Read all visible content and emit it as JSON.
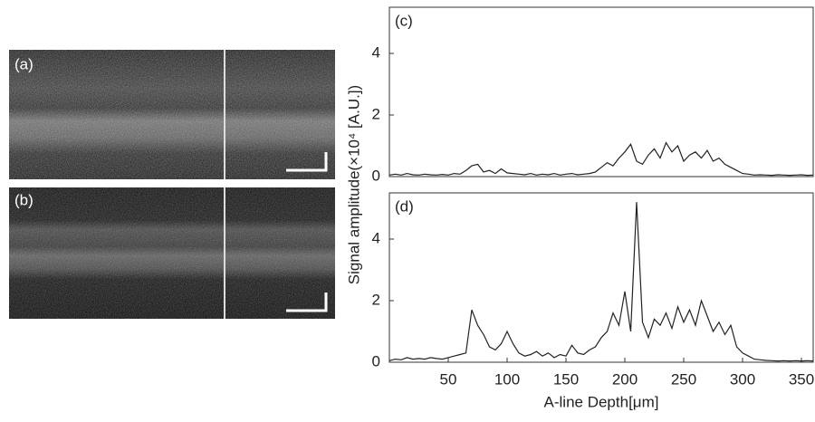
{
  "images": [
    {
      "label": "(a)"
    },
    {
      "label": "(b)"
    }
  ],
  "chart_data": [
    {
      "type": "line",
      "label": "(c)",
      "ylabel": "Signal amplitude(×10⁴ [A.U.])",
      "x": [
        0,
        5,
        10,
        15,
        20,
        25,
        30,
        35,
        40,
        45,
        50,
        55,
        60,
        65,
        70,
        75,
        80,
        85,
        90,
        95,
        100,
        105,
        110,
        115,
        120,
        125,
        130,
        135,
        140,
        145,
        150,
        155,
        160,
        165,
        170,
        175,
        180,
        185,
        190,
        195,
        200,
        205,
        210,
        215,
        220,
        225,
        230,
        235,
        240,
        245,
        250,
        255,
        260,
        265,
        270,
        275,
        280,
        285,
        290,
        295,
        300,
        305,
        310,
        315,
        320,
        325,
        330,
        335,
        340,
        345,
        350,
        355,
        360
      ],
      "series": [
        {
          "color": "#222222",
          "values": [
            0.05,
            0.08,
            0.05,
            0.1,
            0.06,
            0.05,
            0.08,
            0.06,
            0.05,
            0.07,
            0.05,
            0.1,
            0.08,
            0.2,
            0.35,
            0.4,
            0.15,
            0.2,
            0.1,
            0.25,
            0.12,
            0.1,
            0.08,
            0.06,
            0.1,
            0.05,
            0.08,
            0.06,
            0.1,
            0.05,
            0.08,
            0.1,
            0.06,
            0.08,
            0.1,
            0.15,
            0.3,
            0.45,
            0.35,
            0.6,
            0.8,
            1.05,
            0.5,
            0.4,
            0.7,
            0.9,
            0.6,
            1.1,
            0.8,
            1.0,
            0.5,
            0.7,
            0.8,
            0.6,
            0.85,
            0.5,
            0.6,
            0.4,
            0.3,
            0.2,
            0.1,
            0.08,
            0.05,
            0.06,
            0.05,
            0.04,
            0.06,
            0.05,
            0.04,
            0.05,
            0.06,
            0.04,
            0.05
          ]
        }
      ],
      "xlim": [
        0,
        360
      ],
      "ylim": [
        0,
        5.5
      ],
      "yticks": [
        0,
        2,
        4
      ]
    },
    {
      "type": "line",
      "label": "(d)",
      "xlabel": "A-line Depth[μm]",
      "x": [
        0,
        5,
        10,
        15,
        20,
        25,
        30,
        35,
        40,
        45,
        50,
        55,
        60,
        65,
        70,
        75,
        80,
        85,
        90,
        95,
        100,
        105,
        110,
        115,
        120,
        125,
        130,
        135,
        140,
        145,
        150,
        155,
        160,
        165,
        170,
        175,
        180,
        185,
        190,
        195,
        200,
        205,
        210,
        215,
        220,
        225,
        230,
        235,
        240,
        245,
        250,
        255,
        260,
        265,
        270,
        275,
        280,
        285,
        290,
        295,
        300,
        305,
        310,
        315,
        320,
        325,
        330,
        335,
        340,
        345,
        350,
        355,
        360
      ],
      "series": [
        {
          "color": "#222222",
          "values": [
            0.05,
            0.1,
            0.08,
            0.15,
            0.1,
            0.12,
            0.1,
            0.15,
            0.12,
            0.1,
            0.15,
            0.2,
            0.25,
            0.3,
            1.7,
            1.2,
            0.9,
            0.5,
            0.4,
            0.6,
            1.0,
            0.6,
            0.3,
            0.2,
            0.25,
            0.35,
            0.2,
            0.3,
            0.15,
            0.25,
            0.2,
            0.55,
            0.3,
            0.25,
            0.4,
            0.5,
            0.8,
            1.0,
            1.6,
            1.2,
            2.3,
            1.0,
            5.2,
            1.3,
            0.8,
            1.4,
            1.2,
            1.6,
            1.1,
            1.8,
            1.3,
            1.7,
            1.2,
            2.0,
            1.5,
            1.0,
            1.3,
            0.9,
            1.2,
            0.5,
            0.3,
            0.2,
            0.1,
            0.08,
            0.06,
            0.05,
            0.04,
            0.05,
            0.04,
            0.05,
            0.04,
            0.05,
            0.04
          ]
        }
      ],
      "xlim": [
        0,
        360
      ],
      "ylim": [
        0,
        5.5
      ],
      "yticks": [
        0,
        2,
        4
      ],
      "xticks": [
        50,
        100,
        150,
        200,
        250,
        300,
        350
      ]
    }
  ]
}
